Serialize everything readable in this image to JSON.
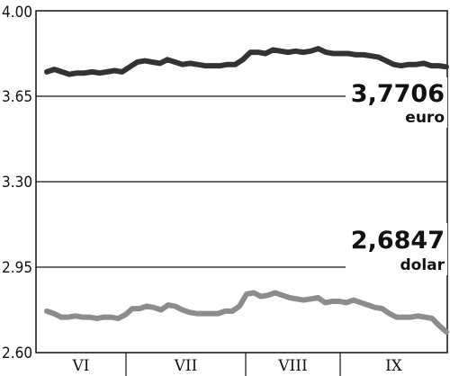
{
  "chart_data": {
    "type": "line",
    "ylim": [
      2.6,
      4.0
    ],
    "y_ticks": [
      "4.00",
      "3.65",
      "3.30",
      "2.95",
      "2.60"
    ],
    "y_tick_values": [
      4.0,
      3.65,
      3.3,
      2.95,
      2.6
    ],
    "months": [
      "VI",
      "VII",
      "VIII",
      "IX"
    ],
    "grid": true,
    "series": [
      {
        "name": "euro",
        "last_value_label": "3,7706",
        "color": "#333333",
        "values": [
          3.75,
          3.76,
          3.75,
          3.74,
          3.745,
          3.745,
          3.75,
          3.745,
          3.75,
          3.755,
          3.75,
          3.77,
          3.79,
          3.795,
          3.79,
          3.785,
          3.8,
          3.79,
          3.78,
          3.785,
          3.78,
          3.775,
          3.775,
          3.775,
          3.78,
          3.78,
          3.8,
          3.83,
          3.83,
          3.825,
          3.84,
          3.835,
          3.83,
          3.835,
          3.83,
          3.835,
          3.845,
          3.83,
          3.825,
          3.825,
          3.825,
          3.82,
          3.82,
          3.815,
          3.81,
          3.795,
          3.78,
          3.775,
          3.78,
          3.78,
          3.785,
          3.775,
          3.775,
          3.7706
        ]
      },
      {
        "name": "dolar",
        "last_value_label": "2,6847",
        "color": "#8c8c8c",
        "values": [
          2.77,
          2.76,
          2.745,
          2.745,
          2.75,
          2.745,
          2.745,
          2.74,
          2.745,
          2.745,
          2.74,
          2.755,
          2.78,
          2.78,
          2.79,
          2.785,
          2.775,
          2.795,
          2.79,
          2.775,
          2.765,
          2.76,
          2.76,
          2.76,
          2.76,
          2.77,
          2.77,
          2.79,
          2.84,
          2.845,
          2.83,
          2.835,
          2.845,
          2.835,
          2.825,
          2.82,
          2.815,
          2.82,
          2.825,
          2.805,
          2.81,
          2.81,
          2.805,
          2.815,
          2.805,
          2.795,
          2.785,
          2.78,
          2.76,
          2.745,
          2.745,
          2.745,
          2.75,
          2.745,
          2.74,
          2.71,
          2.6847
        ]
      }
    ]
  }
}
